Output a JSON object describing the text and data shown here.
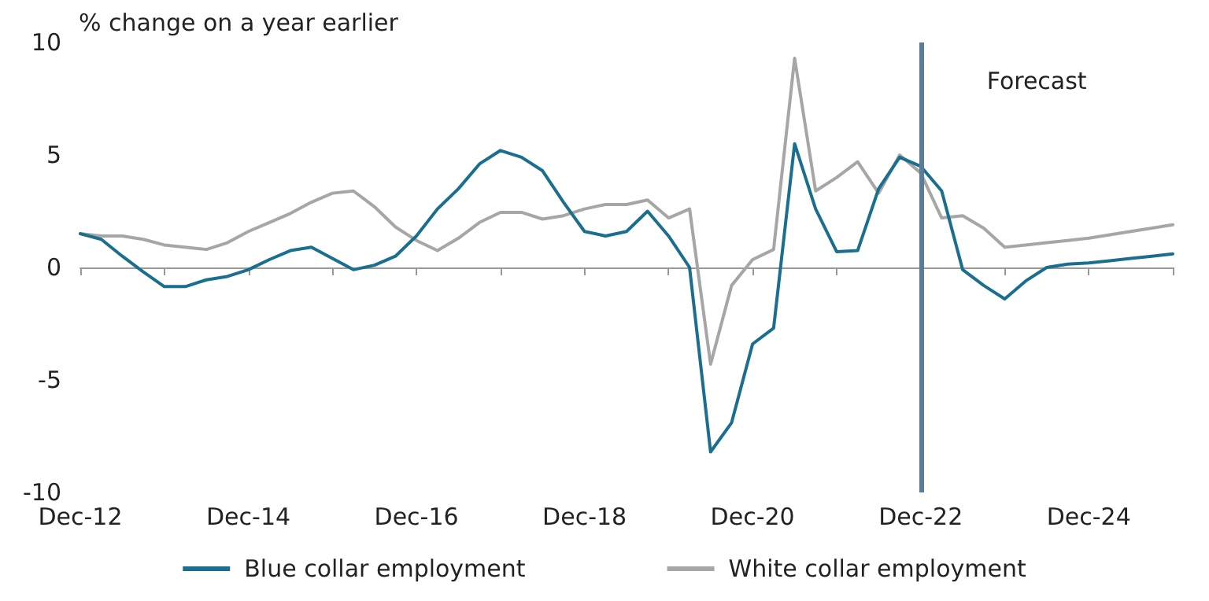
{
  "chart_data": {
    "type": "line",
    "ylabel": "% change on a year earlier",
    "categories": [
      "Dec-12",
      null,
      null,
      null,
      null,
      null,
      null,
      null,
      "Dec-14",
      null,
      null,
      null,
      null,
      null,
      null,
      null,
      "Dec-16",
      null,
      null,
      null,
      null,
      null,
      null,
      null,
      "Dec-18",
      null,
      null,
      null,
      null,
      null,
      null,
      null,
      "Dec-20",
      null,
      null,
      null,
      null,
      null,
      null,
      null,
      "Dec-22",
      null,
      null,
      null,
      null,
      null,
      null,
      null,
      "Dec-24",
      null,
      null,
      null,
      null
    ],
    "series": [
      {
        "name": "Blue collar employment",
        "color": "#1a6e8e",
        "values": [
          1.5,
          1.25,
          0.5,
          -0.2,
          -0.85,
          -0.85,
          -0.55,
          -0.4,
          -0.1,
          0.35,
          0.75,
          0.9,
          0.4,
          -0.1,
          0.1,
          0.5,
          1.4,
          2.6,
          3.5,
          4.6,
          5.2,
          4.9,
          4.3,
          2.9,
          1.6,
          1.4,
          1.6,
          2.5,
          1.4,
          0,
          -8.2,
          -6.9,
          -3.4,
          -2.7,
          5.5,
          2.6,
          0.7,
          0.75,
          3.5,
          4.9,
          4.5,
          3.4,
          -0.1,
          -0.8,
          -1.4,
          -0.6,
          0,
          0.15,
          0.2,
          0.3,
          0.4,
          0.5,
          0.6
        ]
      },
      {
        "name": "White collar employment",
        "color": "#a6a6a6",
        "values": [
          1.5,
          1.4,
          1.4,
          1.25,
          1.0,
          0.9,
          0.8,
          1.1,
          1.6,
          2.0,
          2.4,
          2.9,
          3.3,
          3.4,
          2.7,
          1.8,
          1.2,
          0.75,
          1.3,
          2.0,
          2.45,
          2.45,
          2.15,
          2.3,
          2.6,
          2.8,
          2.8,
          3.0,
          2.2,
          2.6,
          -4.3,
          -0.8,
          0.35,
          0.8,
          9.3,
          3.4,
          4.0,
          4.7,
          3.3,
          5.0,
          4.2,
          2.2,
          2.3,
          1.75,
          0.9,
          1.0,
          1.1,
          1.2,
          1.3,
          1.45,
          1.6,
          1.75,
          1.9
        ]
      }
    ],
    "ylim": [
      -10,
      10
    ],
    "yticks": [
      -10,
      -5,
      0,
      5,
      10
    ],
    "ref_lines": [
      {
        "axis": "x",
        "value": "Dec-22",
        "label": "Forecast",
        "color": "#5b7b96"
      }
    ],
    "grid": false,
    "legend": "bottom",
    "marker": "none",
    "line_style": "solid"
  }
}
